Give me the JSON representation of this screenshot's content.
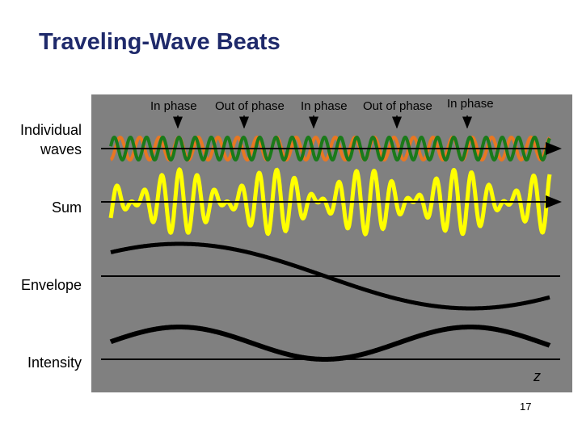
{
  "slide": {
    "title": "Traveling-Wave Beats",
    "page_number": "17"
  },
  "row_labels": {
    "individual": "Individual\nwaves",
    "sum": "Sum",
    "envelope": "Envelope",
    "intensity": "Intensity"
  },
  "phase_labels": [
    "In phase",
    "Out of phase",
    "In phase",
    "Out of phase",
    "In phase"
  ],
  "axis_label": "z",
  "colors": {
    "panel": "#808080",
    "wave1": "#e87722",
    "wave2": "#1a7a1a",
    "sum": "#ffff00",
    "curves": "#000000",
    "title": "#1f2a6b"
  }
}
